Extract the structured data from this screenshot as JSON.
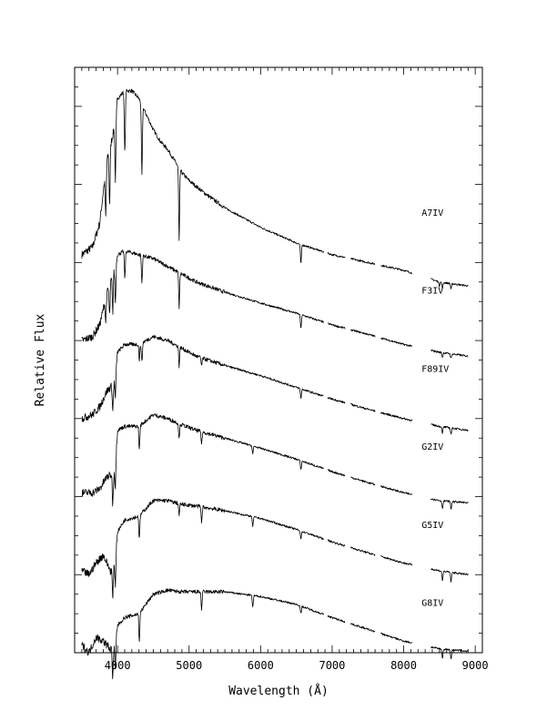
{
  "chart_data": {
    "type": "line",
    "xlabel": "Wavelength (Å)",
    "ylabel": "Relative Flux",
    "xlim": [
      3400,
      9100
    ],
    "ylim": [
      0,
      7.5
    ],
    "x_ticks": [
      4000,
      5000,
      6000,
      7000,
      8000,
      9000
    ],
    "y_ticks_hidden": true,
    "grid": false,
    "legend": "labels placed beside each spectrum on the right",
    "gaps": [
      [
        6880,
        6940
      ],
      [
        7180,
        7260
      ],
      [
        7600,
        7680
      ],
      [
        8120,
        8380
      ]
    ],
    "series": [
      {
        "name": "A7IV",
        "offset": 5.0,
        "points": [
          [
            3500,
            0.1
          ],
          [
            3650,
            0.2
          ],
          [
            3750,
            0.5
          ],
          [
            3850,
            1.3
          ],
          [
            3950,
            1.7
          ],
          [
            4000,
            2.1
          ],
          [
            4100,
            2.2
          ],
          [
            4200,
            2.2
          ],
          [
            4300,
            2.1
          ],
          [
            4400,
            1.9
          ],
          [
            4500,
            1.7
          ],
          [
            4600,
            1.55
          ],
          [
            4700,
            1.45
          ],
          [
            4800,
            1.3
          ],
          [
            4900,
            1.15
          ],
          [
            5000,
            1.05
          ],
          [
            5200,
            0.9
          ],
          [
            5500,
            0.7
          ],
          [
            6000,
            0.45
          ],
          [
            6500,
            0.25
          ],
          [
            7000,
            0.1
          ],
          [
            7500,
            0.0
          ],
          [
            8000,
            -0.1
          ],
          [
            8500,
            -0.25
          ],
          [
            8900,
            -0.3
          ]
        ],
        "lines": [
          [
            3835,
            0.6
          ],
          [
            3889,
            0.7
          ],
          [
            3970,
            0.8
          ],
          [
            4102,
            0.8
          ],
          [
            4340,
            0.9
          ],
          [
            4861,
            0.95
          ],
          [
            6563,
            0.25
          ],
          [
            8498,
            0.05
          ],
          [
            8542,
            0.07
          ],
          [
            8662,
            0.07
          ]
        ]
      },
      {
        "name": "F3IV",
        "offset": 4.0,
        "points": [
          [
            3500,
            0.0
          ],
          [
            3650,
            0.05
          ],
          [
            3750,
            0.2
          ],
          [
            3850,
            0.6
          ],
          [
            3950,
            0.9
          ],
          [
            4000,
            1.1
          ],
          [
            4100,
            1.15
          ],
          [
            4300,
            1.1
          ],
          [
            4500,
            1.05
          ],
          [
            4700,
            0.95
          ],
          [
            4900,
            0.85
          ],
          [
            5100,
            0.75
          ],
          [
            5500,
            0.62
          ],
          [
            6000,
            0.48
          ],
          [
            6500,
            0.35
          ],
          [
            7000,
            0.2
          ],
          [
            7500,
            0.08
          ],
          [
            8000,
            -0.05
          ],
          [
            8500,
            -0.15
          ],
          [
            8900,
            -0.2
          ]
        ],
        "lines": [
          [
            3835,
            0.3
          ],
          [
            3889,
            0.4
          ],
          [
            3933,
            0.5
          ],
          [
            3970,
            0.5
          ],
          [
            4102,
            0.35
          ],
          [
            4340,
            0.35
          ],
          [
            4861,
            0.45
          ],
          [
            6563,
            0.18
          ],
          [
            8542,
            0.06
          ],
          [
            8662,
            0.06
          ]
        ]
      },
      {
        "name": "F89IV",
        "offset": 3.0,
        "points": [
          [
            3500,
            0.0
          ],
          [
            3650,
            0.05
          ],
          [
            3750,
            0.15
          ],
          [
            3850,
            0.35
          ],
          [
            3950,
            0.45
          ],
          [
            4000,
            0.85
          ],
          [
            4100,
            0.95
          ],
          [
            4300,
            0.95
          ],
          [
            4500,
            1.05
          ],
          [
            4700,
            1.0
          ],
          [
            4900,
            0.9
          ],
          [
            5100,
            0.8
          ],
          [
            5500,
            0.68
          ],
          [
            6000,
            0.55
          ],
          [
            6500,
            0.4
          ],
          [
            7000,
            0.25
          ],
          [
            7500,
            0.12
          ],
          [
            8000,
            0.0
          ],
          [
            8500,
            -0.1
          ],
          [
            8900,
            -0.15
          ]
        ],
        "lines": [
          [
            3933,
            0.35
          ],
          [
            3970,
            0.35
          ],
          [
            4305,
            0.2
          ],
          [
            4340,
            0.25
          ],
          [
            4861,
            0.25
          ],
          [
            5175,
            0.1
          ],
          [
            6563,
            0.12
          ],
          [
            8542,
            0.08
          ],
          [
            8662,
            0.08
          ]
        ]
      },
      {
        "name": "G2IV",
        "offset": 2.0,
        "points": [
          [
            3500,
            0.05
          ],
          [
            3650,
            0.05
          ],
          [
            3750,
            0.1
          ],
          [
            3850,
            0.25
          ],
          [
            3950,
            0.3
          ],
          [
            4000,
            0.85
          ],
          [
            4100,
            0.9
          ],
          [
            4300,
            0.9
          ],
          [
            4500,
            1.05
          ],
          [
            4700,
            1.0
          ],
          [
            4900,
            0.92
          ],
          [
            5100,
            0.85
          ],
          [
            5500,
            0.75
          ],
          [
            6000,
            0.62
          ],
          [
            6500,
            0.48
          ],
          [
            7000,
            0.32
          ],
          [
            7500,
            0.18
          ],
          [
            8000,
            0.05
          ],
          [
            8500,
            -0.05
          ],
          [
            8900,
            -0.08
          ]
        ],
        "lines": [
          [
            3933,
            0.4
          ],
          [
            3970,
            0.4
          ],
          [
            4305,
            0.3
          ],
          [
            4861,
            0.2
          ],
          [
            5175,
            0.15
          ],
          [
            5890,
            0.1
          ],
          [
            6563,
            0.12
          ],
          [
            8542,
            0.1
          ],
          [
            8662,
            0.1
          ]
        ]
      },
      {
        "name": "G5IV",
        "offset": 1.0,
        "points": [
          [
            3500,
            0.05
          ],
          [
            3600,
            0.0
          ],
          [
            3700,
            0.15
          ],
          [
            3800,
            0.25
          ],
          [
            3900,
            0.05
          ],
          [
            3950,
            0.1
          ],
          [
            4000,
            0.55
          ],
          [
            4100,
            0.7
          ],
          [
            4300,
            0.75
          ],
          [
            4500,
            0.95
          ],
          [
            4700,
            0.95
          ],
          [
            4900,
            0.9
          ],
          [
            5100,
            0.88
          ],
          [
            5500,
            0.82
          ],
          [
            6000,
            0.72
          ],
          [
            6500,
            0.58
          ],
          [
            7000,
            0.42
          ],
          [
            7500,
            0.28
          ],
          [
            8000,
            0.15
          ],
          [
            8500,
            0.05
          ],
          [
            8900,
            0.0
          ]
        ],
        "lines": [
          [
            3933,
            0.4
          ],
          [
            3970,
            0.4
          ],
          [
            4305,
            0.3
          ],
          [
            4861,
            0.15
          ],
          [
            5175,
            0.2
          ],
          [
            5890,
            0.12
          ],
          [
            6563,
            0.1
          ],
          [
            8542,
            0.12
          ],
          [
            8662,
            0.12
          ]
        ]
      },
      {
        "name": "G8IV",
        "offset": 0.0,
        "points": [
          [
            3500,
            0.1
          ],
          [
            3600,
            0.0
          ],
          [
            3700,
            0.2
          ],
          [
            3800,
            0.15
          ],
          [
            3900,
            0.05
          ],
          [
            3950,
            0.05
          ],
          [
            4000,
            0.35
          ],
          [
            4100,
            0.45
          ],
          [
            4300,
            0.5
          ],
          [
            4500,
            0.75
          ],
          [
            4700,
            0.8
          ],
          [
            4900,
            0.78
          ],
          [
            5100,
            0.78
          ],
          [
            5500,
            0.78
          ],
          [
            6000,
            0.72
          ],
          [
            6500,
            0.62
          ],
          [
            7000,
            0.45
          ],
          [
            7500,
            0.3
          ],
          [
            8000,
            0.15
          ],
          [
            8500,
            0.05
          ],
          [
            8900,
            0.02
          ]
        ],
        "lines": [
          [
            3933,
            0.4
          ],
          [
            3970,
            0.4
          ],
          [
            4305,
            0.35
          ],
          [
            5175,
            0.22
          ],
          [
            5890,
            0.15
          ],
          [
            6563,
            0.1
          ],
          [
            8542,
            0.12
          ],
          [
            8662,
            0.12
          ]
        ]
      }
    ]
  }
}
